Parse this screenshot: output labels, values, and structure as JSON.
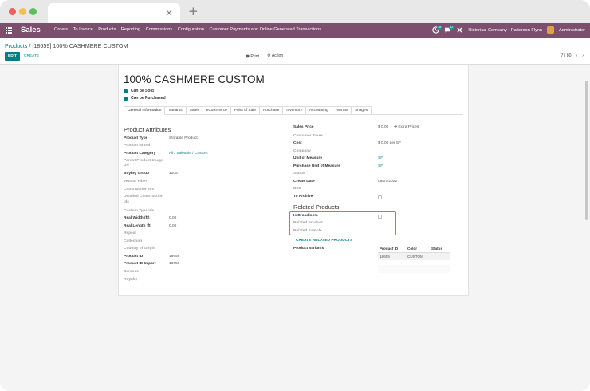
{
  "browser": {
    "tab_close": "×",
    "new_tab": "+"
  },
  "navbar": {
    "brand": "Sales",
    "menu": [
      "Orders",
      "To Invoice",
      "Products",
      "Reporting",
      "Commissions",
      "Configuration",
      "Customer Payments and Online Generated Transactions"
    ],
    "badge_activity": "28",
    "badge_messages": "12",
    "company": "Historical Company - Patterson Flynn",
    "user": "Administrator"
  },
  "control": {
    "breadcrumb_parent": "Products",
    "breadcrumb_sep": " / ",
    "breadcrumb_current": "[18659] 100% CASHMERE CUSTOM",
    "edit_label": "EDIT",
    "create_label": "CREATE",
    "print_label": "Print",
    "action_label": "Action",
    "pager": "7 / 80"
  },
  "form": {
    "name": "100% CASHMERE CUSTOM",
    "can_be_sold": "Can be Sold",
    "can_be_purchased": "Can be Purchased",
    "tabs": [
      "General Information",
      "Variants",
      "Sales",
      "eCommerce",
      "Point of Sale",
      "Purchase",
      "Inventory",
      "Accounting",
      "AvaTax",
      "Images"
    ],
    "left_title": "Product Attributes",
    "left": {
      "product_type_label": "Product Type",
      "product_type": "Storable Product",
      "product_brand": "Product Brand",
      "product_category_label": "Product Category",
      "product_category": "All / Saleable / Custom",
      "parent_image_1": "Parent Product Image",
      "parent_image_2": "Url",
      "buying_group_label": "Buying Group",
      "buying_group": "1005",
      "vendor_fiber": "Vendor Fiber",
      "construction_ids": "Construction Ids",
      "detailed_construction_1": "Detailed Construction",
      "detailed_construction_2": "Ids",
      "custom_type_ids": "Custom Type Ids",
      "real_width_label": "Real Width (ft)",
      "real_width": "0.00",
      "real_length_label": "Real Length (ft)",
      "real_length": "0.00",
      "repeat": "Repeat",
      "collection": "Collection",
      "country": "Country of Origin",
      "product_id_label": "Product ID",
      "product_id": "18659",
      "product_id_import_label": "Product ID Import",
      "product_id_import": "18658",
      "barcode": "Barcode",
      "royalty": "Royalty"
    },
    "right": {
      "sales_price_label": "Sales Price",
      "sales_price": "$ 0.00",
      "extra_prices": "Extra Prices",
      "customer_taxes": "Customer Taxes",
      "cost_label": "Cost",
      "cost": "$ 0.00 per SF",
      "company": "Company",
      "uom_label": "Unit of Measure",
      "uom": "SF",
      "purchase_uom_label": "Purchase Unit of Measure",
      "purchase_uom": "SF",
      "status": "Status",
      "create_date_label": "Create Date",
      "create_date": "09/07/2022",
      "b2c": "B2C",
      "to_archive_label": "To Archive",
      "related_title": "Related Products",
      "is_broadloom_label": "Is Broadloom",
      "related_product": "Related Product",
      "related_sample": "Related Sample",
      "create_related_button": "CREATE RELATED PRODUCTS",
      "product_variants_label": "Product Variants",
      "variants_columns": [
        "Product ID",
        "Color",
        "Status"
      ],
      "variants_rows": [
        [
          "18659",
          "CUSTOM",
          ""
        ]
      ]
    }
  },
  "colors": {
    "navbar": "#7c4f6e",
    "accent": "#017e84",
    "highlight_box": "#a56ad6"
  }
}
